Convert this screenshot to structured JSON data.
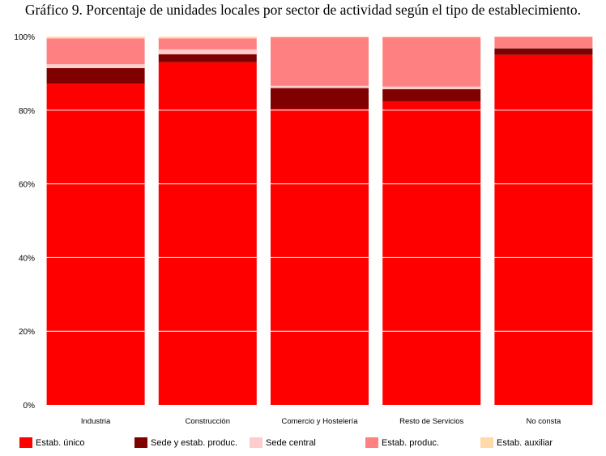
{
  "chart_data": {
    "type": "bar",
    "stacked": true,
    "percent": true,
    "title": "Gráfico 9. Porcentaje de unidades locales por sector de actividad según el tipo de establecimiento.",
    "categories": [
      "Industria",
      "Construcción",
      "Comercio y Hostelería",
      "Resto de Servicios",
      "No consta"
    ],
    "ylim": [
      0,
      100
    ],
    "yticks": [
      "0%",
      "20%",
      "40%",
      "60%",
      "80%",
      "100%"
    ],
    "grid": true,
    "legend_position": "bottom",
    "series": [
      {
        "name": "Estab. único",
        "color": "#ff0000",
        "values": [
          87.2,
          93.0,
          80.4,
          82.4,
          95.0
        ]
      },
      {
        "name": "Sede y estab. produc.",
        "color": "#800000",
        "values": [
          4.2,
          2.2,
          5.6,
          3.3,
          1.8
        ]
      },
      {
        "name": "Sede central",
        "color": "#ffcccc",
        "values": [
          1.1,
          1.3,
          0.6,
          0.7,
          0.1
        ]
      },
      {
        "name": "Estab. produc.",
        "color": "#ff8080",
        "values": [
          7.0,
          3.0,
          13.2,
          13.4,
          3.0
        ]
      },
      {
        "name": "Estab. auxiliar",
        "color": "#ffd9a8",
        "values": [
          0.5,
          0.5,
          0.2,
          0.2,
          0.1
        ]
      }
    ]
  }
}
